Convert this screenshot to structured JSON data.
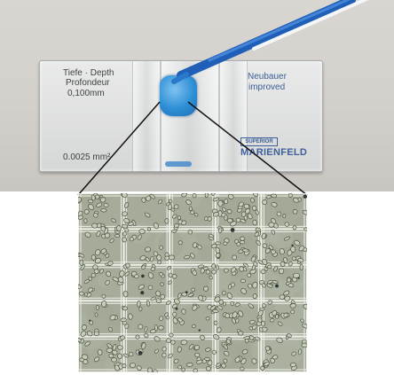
{
  "slide": {
    "depth_line1": "Tiefe · Depth",
    "depth_line2": "Profondeur",
    "depth_line3": "0,100mm",
    "area_label": "0.0025 mm²",
    "brand_line1": "Neubauer",
    "brand_line2": "improved",
    "logo_small": "SUPERIOR",
    "maker": "MARIENFELD"
  },
  "colors": {
    "pipette_blue": "#1f5fb8",
    "sample_blue": "#2e8fd6",
    "grid_line": "#eef1ea",
    "cell_fill": "#c6ccb8"
  },
  "microscope": {
    "grid_columns": 5,
    "grid_rows": 5
  }
}
